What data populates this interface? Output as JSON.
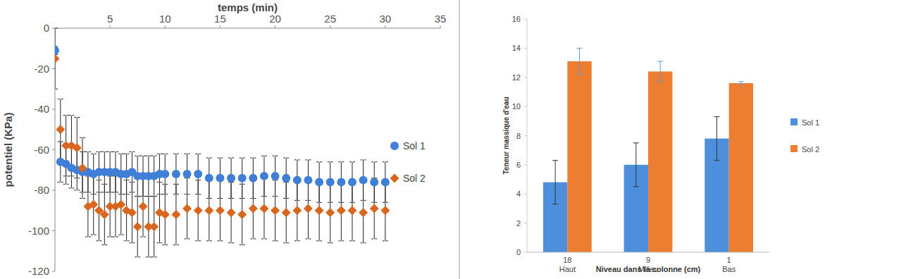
{
  "chart_data": [
    {
      "type": "scatter",
      "title": "temps (min)",
      "y_label": "potentiel (KPa)",
      "x": [
        0,
        0.5,
        1,
        1.5,
        2,
        2.5,
        3,
        3.5,
        4,
        4.5,
        5,
        5.5,
        6,
        6.5,
        7,
        7.5,
        8,
        8.5,
        9,
        9.5,
        10,
        11,
        12,
        13,
        14,
        15,
        16,
        17,
        18,
        19,
        20,
        21,
        22,
        23,
        24,
        25,
        26,
        27,
        28,
        29,
        30
      ],
      "xlim": [
        0,
        35
      ],
      "xticks": [
        5,
        10,
        15,
        20,
        25,
        30,
        35
      ],
      "ylim": [
        -120,
        0
      ],
      "yticks": [
        0,
        -20,
        -40,
        -60,
        -80,
        -100,
        -120
      ],
      "grid": false,
      "legend": "right",
      "series": [
        {
          "name": "Sol 1",
          "color": "#3f7fd8",
          "marker": "circle",
          "values": [
            -11,
            -66,
            -67,
            -69,
            -70,
            -71,
            -71,
            -72,
            -71,
            -71,
            -71,
            -71,
            -72,
            -72,
            -71,
            -73,
            -73,
            -73,
            -73,
            -72,
            -72,
            -72,
            -72,
            -72,
            -74,
            -74,
            -74,
            -74,
            -74,
            -73,
            -73,
            -74,
            -75,
            -75,
            -76,
            -76,
            -76,
            -76,
            -75,
            -76,
            -76
          ],
          "errors": [
            2,
            10,
            10,
            10,
            10,
            10,
            10,
            10,
            10,
            10,
            10,
            10,
            10,
            10,
            10,
            10,
            10,
            10,
            10,
            10,
            10,
            10,
            10,
            10,
            10,
            10,
            10,
            10,
            10,
            10,
            10,
            10,
            10,
            10,
            10,
            10,
            10,
            10,
            10,
            10,
            10
          ]
        },
        {
          "name": "Sol 2",
          "color": "#d9661f",
          "marker": "diamond",
          "values": [
            -15,
            -50,
            -58,
            -58,
            -59,
            -69,
            -88,
            -87,
            -90,
            -92,
            -88,
            -88,
            -87,
            -90,
            -91,
            -98,
            -88,
            -98,
            -98,
            -91,
            -92,
            -92,
            -89,
            -90,
            -90,
            -90,
            -91,
            -92,
            -89,
            -89,
            -90,
            -91,
            -90,
            -89,
            -90,
            -91,
            -90,
            -90,
            -91,
            -89,
            -90
          ],
          "errors": [
            15,
            15,
            15,
            15,
            15,
            15,
            15,
            15,
            15,
            15,
            15,
            15,
            15,
            15,
            15,
            15,
            15,
            15,
            15,
            15,
            15,
            15,
            15,
            15,
            15,
            15,
            15,
            15,
            15,
            15,
            15,
            15,
            15,
            15,
            15,
            15,
            15,
            15,
            15,
            15,
            15
          ]
        }
      ]
    },
    {
      "type": "bar",
      "x_label": "Niveau dans la colonne (cm)",
      "y_label": "Teneur massique d'eau",
      "categories": [
        "18\nHaut",
        "9\nMilieu",
        "1\nBas"
      ],
      "ylim": [
        0,
        16
      ],
      "yticks": [
        0,
        2,
        4,
        6,
        8,
        10,
        12,
        14,
        16
      ],
      "grid": false,
      "legend": "right",
      "series": [
        {
          "name": "Sol 1",
          "color": "#4e8fdc",
          "values": [
            4.8,
            6.0,
            7.8
          ],
          "errors": [
            1.5,
            1.5,
            1.5
          ]
        },
        {
          "name": "Sol 2",
          "color": "#ed7d31",
          "values": [
            13.1,
            12.4,
            11.6
          ],
          "errors": [
            0.9,
            0.7,
            0.1
          ]
        }
      ]
    }
  ]
}
